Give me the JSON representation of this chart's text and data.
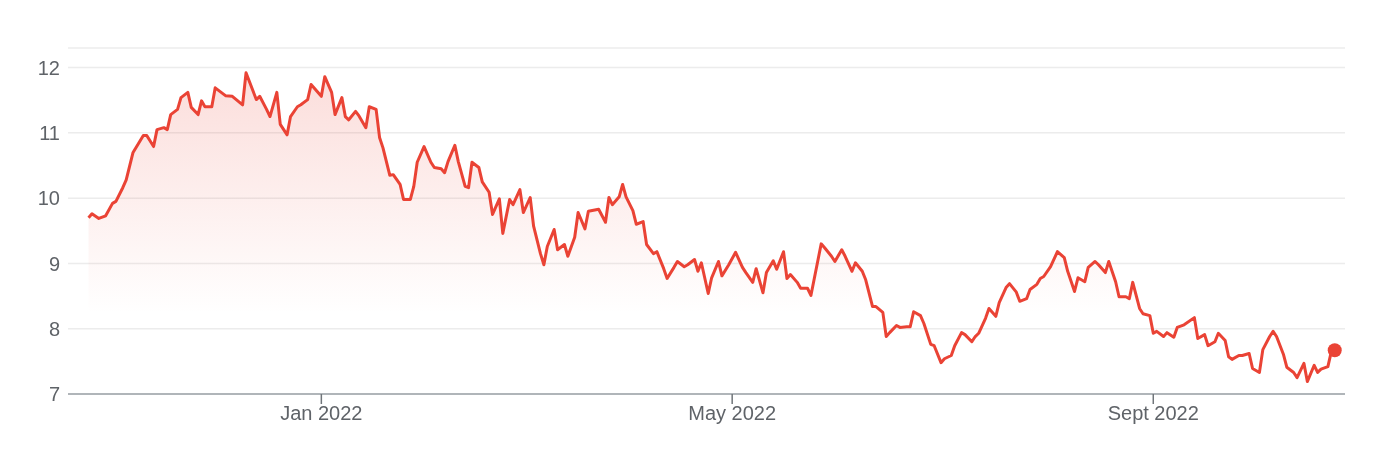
{
  "chart_data": {
    "type": "area",
    "grid": "y",
    "xlim": [
      "2021-10-19",
      "2022-10-27"
    ],
    "xticks": [
      {
        "value": "2022-01-01",
        "label": "Jan 2022"
      },
      {
        "value": "2022-05-01",
        "label": "May 2022"
      },
      {
        "value": "2022-09-01",
        "label": "Sept 2022"
      }
    ],
    "ylim": [
      7,
      12.3
    ],
    "yticks": [
      7,
      8,
      9,
      10,
      11,
      12
    ],
    "series": [
      {
        "color": "#ea4335",
        "marker": "none",
        "x": [
          "2021-10-25",
          "2021-10-26",
          "2021-10-28",
          "2021-10-30",
          "2021-11-01",
          "2021-11-02",
          "2021-11-04",
          "2021-11-05",
          "2021-11-07",
          "2021-11-10",
          "2021-11-11",
          "2021-11-13",
          "2021-11-14",
          "2021-11-16",
          "2021-11-17",
          "2021-11-18",
          "2021-11-20",
          "2021-11-21",
          "2021-11-23",
          "2021-11-24",
          "2021-11-26",
          "2021-11-27",
          "2021-11-28",
          "2021-11-30",
          "2021-12-01",
          "2021-12-04",
          "2021-12-06",
          "2021-12-09",
          "2021-12-10",
          "2021-12-13",
          "2021-12-14",
          "2021-12-16",
          "2021-12-17",
          "2021-12-19",
          "2021-12-20",
          "2021-12-22",
          "2021-12-23",
          "2021-12-25",
          "2021-12-26",
          "2021-12-28",
          "2021-12-29",
          "2022-01-01",
          "2022-01-02",
          "2022-01-04",
          "2022-01-05",
          "2022-01-07",
          "2022-01-08",
          "2022-01-09",
          "2022-01-11",
          "2022-01-12",
          "2022-01-14",
          "2022-01-15",
          "2022-01-17",
          "2022-01-18",
          "2022-01-19",
          "2022-01-21",
          "2022-01-22",
          "2022-01-24",
          "2022-01-25",
          "2022-01-27",
          "2022-01-28",
          "2022-01-29",
          "2022-01-31",
          "2022-02-02",
          "2022-02-03",
          "2022-02-05",
          "2022-02-06",
          "2022-02-07",
          "2022-02-09",
          "2022-02-10",
          "2022-02-12",
          "2022-02-13",
          "2022-02-14",
          "2022-02-16",
          "2022-02-17",
          "2022-02-19",
          "2022-02-20",
          "2022-02-22",
          "2022-02-23",
          "2022-02-25",
          "2022-02-26",
          "2022-02-28",
          "2022-03-01",
          "2022-03-03",
          "2022-03-04",
          "2022-03-06",
          "2022-03-07",
          "2022-03-08",
          "2022-03-10",
          "2022-03-11",
          "2022-03-13",
          "2022-03-14",
          "2022-03-16",
          "2022-03-17",
          "2022-03-19",
          "2022-03-20",
          "2022-03-23",
          "2022-03-25",
          "2022-03-26",
          "2022-03-27",
          "2022-03-29",
          "2022-03-30",
          "2022-03-31",
          "2022-04-02",
          "2022-04-03",
          "2022-04-05",
          "2022-04-06",
          "2022-04-08",
          "2022-04-09",
          "2022-04-11",
          "2022-04-12",
          "2022-04-14",
          "2022-04-15",
          "2022-04-17",
          "2022-04-18",
          "2022-04-20",
          "2022-04-21",
          "2022-04-22",
          "2022-04-24",
          "2022-04-25",
          "2022-04-27",
          "2022-04-28",
          "2022-04-30",
          "2022-05-02",
          "2022-05-04",
          "2022-05-05",
          "2022-05-07",
          "2022-05-08",
          "2022-05-10",
          "2022-05-11",
          "2022-05-13",
          "2022-05-14",
          "2022-05-16",
          "2022-05-17",
          "2022-05-18",
          "2022-05-20",
          "2022-05-21",
          "2022-05-23",
          "2022-05-24",
          "2022-05-27",
          "2022-05-28",
          "2022-05-30",
          "2022-05-31",
          "2022-06-02",
          "2022-06-03",
          "2022-06-05",
          "2022-06-06",
          "2022-06-08",
          "2022-06-09",
          "2022-06-11",
          "2022-06-12",
          "2022-06-14",
          "2022-06-15",
          "2022-06-16",
          "2022-06-18",
          "2022-06-19",
          "2022-06-21",
          "2022-06-22",
          "2022-06-23",
          "2022-06-25",
          "2022-06-26",
          "2022-06-28",
          "2022-06-29",
          "2022-07-01",
          "2022-07-02",
          "2022-07-04",
          "2022-07-05",
          "2022-07-07",
          "2022-07-08",
          "2022-07-10",
          "2022-07-11",
          "2022-07-12",
          "2022-07-14",
          "2022-07-15",
          "2022-07-17",
          "2022-07-18",
          "2022-07-20",
          "2022-07-21",
          "2022-07-23",
          "2022-07-24",
          "2022-07-26",
          "2022-07-27",
          "2022-07-29",
          "2022-07-30",
          "2022-07-31",
          "2022-08-02",
          "2022-08-04",
          "2022-08-06",
          "2022-08-07",
          "2022-08-09",
          "2022-08-10",
          "2022-08-12",
          "2022-08-13",
          "2022-08-15",
          "2022-08-16",
          "2022-08-18",
          "2022-08-19",
          "2022-08-21",
          "2022-08-22",
          "2022-08-24",
          "2022-08-25",
          "2022-08-26",
          "2022-08-28",
          "2022-08-29",
          "2022-08-31",
          "2022-09-01",
          "2022-09-02",
          "2022-09-04",
          "2022-09-05",
          "2022-09-07",
          "2022-09-08",
          "2022-09-10",
          "2022-09-13",
          "2022-09-14",
          "2022-09-16",
          "2022-09-17",
          "2022-09-19",
          "2022-09-20",
          "2022-09-22",
          "2022-09-23",
          "2022-09-24",
          "2022-09-26",
          "2022-09-27",
          "2022-09-29",
          "2022-09-30",
          "2022-10-02",
          "2022-10-03",
          "2022-10-05",
          "2022-10-06",
          "2022-10-07",
          "2022-10-09",
          "2022-10-10",
          "2022-10-12",
          "2022-10-13",
          "2022-10-15",
          "2022-10-16",
          "2022-10-18",
          "2022-10-19",
          "2022-10-20",
          "2022-10-22",
          "2022-10-23",
          "2022-10-24"
        ],
        "values": [
          9.7,
          9.76,
          9.69,
          9.73,
          9.92,
          9.95,
          10.16,
          10.28,
          10.7,
          10.96,
          10.96,
          10.79,
          11.05,
          11.08,
          11.05,
          11.28,
          11.36,
          11.54,
          11.62,
          11.39,
          11.28,
          11.49,
          11.4,
          11.4,
          11.69,
          11.57,
          11.56,
          11.43,
          11.92,
          11.51,
          11.56,
          11.36,
          11.25,
          11.62,
          11.13,
          10.97,
          11.25,
          11.4,
          11.43,
          11.51,
          11.74,
          11.56,
          11.86,
          11.62,
          11.28,
          11.54,
          11.25,
          11.2,
          11.33,
          11.26,
          11.08,
          11.4,
          11.36,
          10.93,
          10.77,
          10.35,
          10.36,
          10.21,
          9.98,
          9.98,
          10.18,
          10.55,
          10.79,
          10.55,
          10.47,
          10.45,
          10.39,
          10.56,
          10.81,
          10.56,
          10.18,
          10.16,
          10.55,
          10.47,
          10.25,
          10.09,
          9.75,
          9.99,
          9.46,
          9.98,
          9.9,
          10.13,
          9.78,
          10.01,
          9.57,
          9.15,
          8.98,
          9.26,
          9.52,
          9.21,
          9.29,
          9.11,
          9.4,
          9.78,
          9.53,
          9.8,
          9.83,
          9.63,
          10.01,
          9.9,
          10.02,
          10.21,
          10.02,
          9.81,
          9.6,
          9.64,
          9.29,
          9.15,
          9.18,
          8.92,
          8.77,
          8.94,
          9.03,
          8.95,
          8.98,
          9.06,
          8.88,
          9.01,
          8.54,
          8.78,
          9.03,
          8.81,
          8.98,
          9.17,
          8.94,
          8.86,
          8.71,
          8.92,
          8.55,
          8.86,
          9.04,
          8.91,
          9.18,
          8.77,
          8.83,
          8.71,
          8.62,
          8.62,
          8.51,
          9.3,
          9.24,
          9.11,
          9.03,
          9.21,
          9.11,
          8.88,
          9.01,
          8.88,
          8.75,
          8.34,
          8.34,
          8.25,
          7.88,
          7.94,
          8.05,
          8.02,
          8.03,
          8.03,
          8.26,
          8.2,
          8.08,
          7.76,
          7.74,
          7.48,
          7.54,
          7.59,
          7.74,
          7.94,
          7.91,
          7.8,
          7.88,
          7.93,
          8.16,
          8.31,
          8.19,
          8.4,
          8.63,
          8.69,
          8.56,
          8.42,
          8.46,
          8.6,
          8.68,
          8.77,
          8.8,
          8.95,
          9.18,
          9.09,
          8.88,
          8.57,
          8.78,
          8.72,
          8.94,
          9.03,
          8.98,
          8.86,
          9.03,
          8.72,
          8.49,
          8.49,
          8.46,
          8.71,
          8.31,
          8.23,
          8.2,
          7.93,
          7.96,
          7.88,
          7.94,
          7.87,
          8.02,
          8.06,
          8.17,
          7.85,
          7.91,
          7.74,
          7.8,
          7.93,
          7.82,
          7.57,
          7.53,
          7.59,
          7.59,
          7.62,
          7.39,
          7.33,
          7.68,
          7.88,
          7.96,
          7.88,
          7.61,
          7.41,
          7.33,
          7.25,
          7.47,
          7.19,
          7.44,
          7.33,
          7.38,
          7.42,
          7.65,
          7.67
        ]
      },
      {
        "type": "scatter",
        "color": "#ea4335",
        "marker": "circle",
        "x": [
          "2022-10-24"
        ],
        "values": [
          7.67
        ]
      }
    ]
  }
}
